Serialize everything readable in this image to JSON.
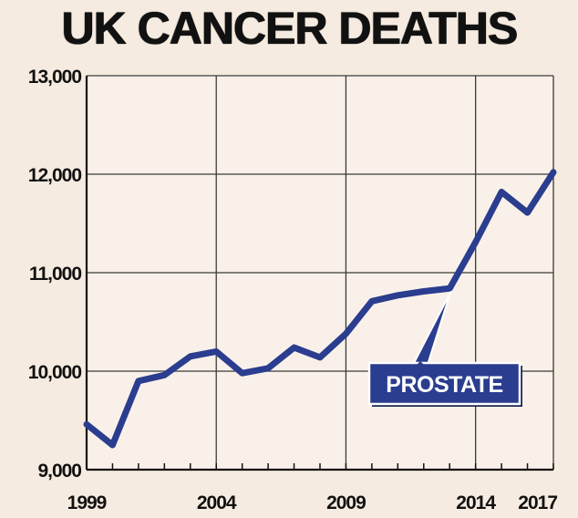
{
  "chart_data": {
    "type": "line",
    "title": "UK CANCER DEATHS",
    "xlabel": "",
    "ylabel": "",
    "xlim": [
      1999,
      2017
    ],
    "ylim": [
      9000,
      13000
    ],
    "x_ticks": [
      1999,
      2004,
      2009,
      2014,
      2017
    ],
    "y_ticks": [
      9000,
      10000,
      11000,
      12000,
      13000
    ],
    "y_tick_labels": [
      "9,000",
      "10,000",
      "11,000",
      "12,000",
      "13,000"
    ],
    "grid": true,
    "series": [
      {
        "name": "PROSTATE",
        "color": "#2b3d8f",
        "x": [
          1999,
          2000,
          2001,
          2002,
          2003,
          2004,
          2005,
          2006,
          2007,
          2008,
          2009,
          2010,
          2011,
          2012,
          2013,
          2014,
          2015,
          2016,
          2017
        ],
        "y": [
          9460,
          9250,
          9900,
          9960,
          10150,
          10200,
          9980,
          10030,
          10240,
          10140,
          10380,
          10710,
          10770,
          10810,
          10840,
          11310,
          11820,
          11610,
          12020
        ]
      }
    ],
    "annotations": [
      {
        "text": "PROSTATE",
        "x": 2013,
        "y": 10840
      }
    ]
  }
}
